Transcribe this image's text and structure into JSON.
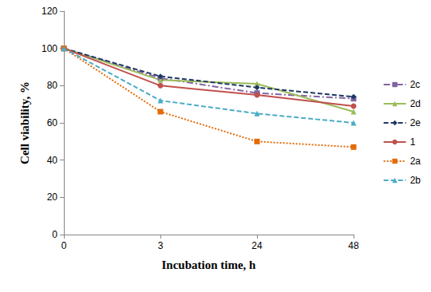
{
  "chart_data": {
    "type": "line",
    "x_label": "Incubation time, h",
    "y_label": "Cell viability, %",
    "categories": [
      "0",
      "3",
      "24",
      "48"
    ],
    "ylim": [
      0,
      120
    ],
    "yticks": [
      0,
      20,
      40,
      60,
      80,
      100,
      120
    ],
    "grid": false,
    "legend": "right",
    "series": [
      {
        "name": "2c",
        "color": "#8064a2",
        "marker": "square",
        "line_style": "dashdot",
        "values": [
          100,
          84,
          76,
          73
        ]
      },
      {
        "name": "2d",
        "color": "#9bbb59",
        "marker": "triangle",
        "line_style": "solid",
        "values": [
          100,
          83,
          81,
          66
        ]
      },
      {
        "name": "2e",
        "color": "#1f3864",
        "marker": "diamond",
        "line_style": "dashed",
        "values": [
          100,
          85,
          79,
          74
        ]
      },
      {
        "name": "1",
        "color": "#c0504d",
        "marker": "circle",
        "line_style": "solid",
        "values": [
          100,
          80,
          75,
          69
        ]
      },
      {
        "name": "2a",
        "color": "#e36c09",
        "marker": "square",
        "line_style": "dotted",
        "values": [
          100,
          66,
          50,
          47
        ]
      },
      {
        "name": "2b",
        "color": "#4bacc6",
        "marker": "triangle",
        "line_style": "dashed",
        "values": [
          100,
          72,
          65,
          60
        ]
      }
    ]
  }
}
